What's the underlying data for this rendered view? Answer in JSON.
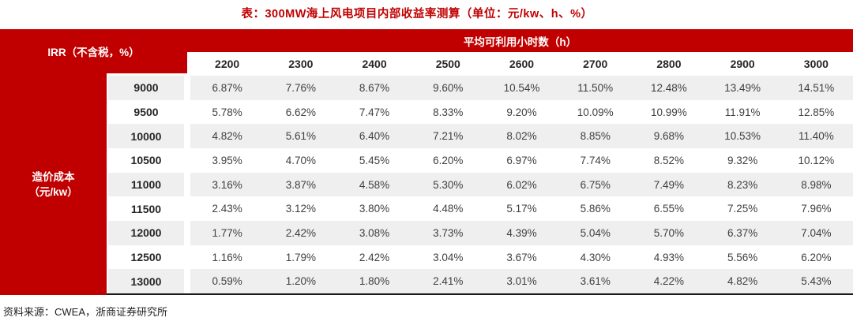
{
  "title": "表：300MW海上风电项目内部收益率测算（单位：元/kw、h、%）",
  "table": {
    "corner_label": "IRR（不含税，%）",
    "column_group_label": "平均可利用小时数（h）",
    "row_group_label_line1": "造价成本",
    "row_group_label_line2": "（元/kw）",
    "column_headers": [
      "2200",
      "2300",
      "2400",
      "2500",
      "2600",
      "2700",
      "2800",
      "2900",
      "3000"
    ],
    "rows": [
      {
        "label": "9000",
        "values": [
          "6.87%",
          "7.76%",
          "8.67%",
          "9.60%",
          "10.54%",
          "11.50%",
          "12.48%",
          "13.49%",
          "14.51%"
        ]
      },
      {
        "label": "9500",
        "values": [
          "5.78%",
          "6.62%",
          "7.47%",
          "8.33%",
          "9.20%",
          "10.09%",
          "10.99%",
          "11.91%",
          "12.85%"
        ]
      },
      {
        "label": "10000",
        "values": [
          "4.82%",
          "5.61%",
          "6.40%",
          "7.21%",
          "8.02%",
          "8.85%",
          "9.68%",
          "10.53%",
          "11.40%"
        ]
      },
      {
        "label": "10500",
        "values": [
          "3.95%",
          "4.70%",
          "5.45%",
          "6.20%",
          "6.97%",
          "7.74%",
          "8.52%",
          "9.32%",
          "10.12%"
        ]
      },
      {
        "label": "11000",
        "values": [
          "3.16%",
          "3.87%",
          "4.58%",
          "5.30%",
          "6.02%",
          "6.75%",
          "7.49%",
          "8.23%",
          "8.98%"
        ]
      },
      {
        "label": "11500",
        "values": [
          "2.43%",
          "3.12%",
          "3.80%",
          "4.48%",
          "5.17%",
          "5.86%",
          "6.55%",
          "7.25%",
          "7.96%"
        ]
      },
      {
        "label": "12000",
        "values": [
          "1.77%",
          "2.42%",
          "3.08%",
          "3.73%",
          "4.39%",
          "5.04%",
          "5.70%",
          "6.37%",
          "7.04%"
        ]
      },
      {
        "label": "12500",
        "values": [
          "1.16%",
          "1.79%",
          "2.42%",
          "3.04%",
          "3.67%",
          "4.30%",
          "4.93%",
          "5.56%",
          "6.20%"
        ]
      },
      {
        "label": "13000",
        "values": [
          "0.59%",
          "1.20%",
          "1.80%",
          "2.41%",
          "3.01%",
          "3.61%",
          "4.22%",
          "4.82%",
          "5.43%"
        ]
      }
    ]
  },
  "footer": "资料来源：CWEA，浙商证券研究所",
  "colors": {
    "accent_red": "#c00000",
    "stripe_gray": "#efefef",
    "bottom_border": "#1b1b1b",
    "data_text": "#3f3f3f"
  }
}
